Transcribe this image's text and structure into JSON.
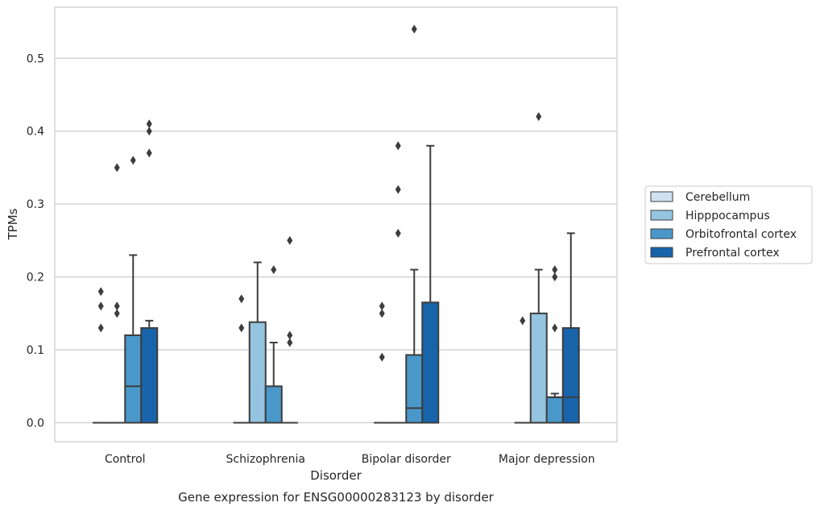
{
  "chart_data": {
    "type": "boxplot",
    "title": "",
    "caption": "Gene expression for ENSG00000283123 by disorder",
    "xlabel": "Disorder",
    "ylabel": "TPMs",
    "ylim": [
      -0.026,
      0.57
    ],
    "yticks": [
      0.0,
      0.1,
      0.2,
      0.3,
      0.4,
      0.5
    ],
    "ytick_labels": [
      "0.0",
      "0.1",
      "0.2",
      "0.3",
      "0.4",
      "0.5"
    ],
    "grid": "horizontal",
    "legend_position": "right",
    "categories": [
      "Control",
      "Schizophrenia",
      "Bipolar disorder",
      "Major depression"
    ],
    "series": [
      {
        "name": "Cerebellum",
        "color": "#d0e1f2",
        "boxes": [
          {
            "q1": 0,
            "median": 0,
            "q3": 0,
            "whisker_low": 0,
            "whisker_high": 0,
            "outliers": [
              0.13,
              0.16,
              0.18
            ]
          },
          {
            "q1": 0,
            "median": 0,
            "q3": 0,
            "whisker_low": 0,
            "whisker_high": 0,
            "outliers": [
              0.13,
              0.17
            ]
          },
          {
            "q1": 0,
            "median": 0,
            "q3": 0,
            "whisker_low": 0,
            "whisker_high": 0,
            "outliers": [
              0.09,
              0.15,
              0.16
            ]
          },
          {
            "q1": 0,
            "median": 0,
            "q3": 0,
            "whisker_low": 0,
            "whisker_high": 0,
            "outliers": [
              0.14
            ]
          }
        ]
      },
      {
        "name": "Hipppocampus",
        "color": "#94c4df",
        "boxes": [
          {
            "q1": 0,
            "median": 0,
            "q3": 0,
            "whisker_low": 0,
            "whisker_high": 0,
            "outliers": [
              0.15,
              0.16,
              0.35
            ]
          },
          {
            "q1": 0,
            "median": 0,
            "q3": 0.138,
            "whisker_low": 0,
            "whisker_high": 0.22,
            "outliers": []
          },
          {
            "q1": 0,
            "median": 0,
            "q3": 0,
            "whisker_low": 0,
            "whisker_high": 0,
            "outliers": [
              0.26,
              0.32,
              0.38
            ]
          },
          {
            "q1": 0,
            "median": 0,
            "q3": 0.15,
            "whisker_low": 0,
            "whisker_high": 0.21,
            "outliers": [
              0.42
            ]
          }
        ]
      },
      {
        "name": "Orbitofrontal cortex",
        "color": "#4a98c9",
        "boxes": [
          {
            "q1": 0,
            "median": 0.05,
            "q3": 0.12,
            "whisker_low": 0,
            "whisker_high": 0.23,
            "outliers": [
              0.36
            ]
          },
          {
            "q1": 0,
            "median": 0,
            "q3": 0.05,
            "whisker_low": 0,
            "whisker_high": 0.11,
            "outliers": [
              0.21
            ]
          },
          {
            "q1": 0,
            "median": 0.02,
            "q3": 0.093,
            "whisker_low": 0,
            "whisker_high": 0.21,
            "outliers": [
              0.54
            ]
          },
          {
            "q1": 0,
            "median": 0.035,
            "q3": 0.035,
            "whisker_low": 0,
            "whisker_high": 0.04,
            "outliers": [
              0.13,
              0.2,
              0.21
            ]
          }
        ]
      },
      {
        "name": "Prefrontal cortex",
        "color": "#1764ab",
        "boxes": [
          {
            "q1": 0,
            "median": 0,
            "q3": 0.13,
            "whisker_low": 0,
            "whisker_high": 0.14,
            "outliers": [
              0.37,
              0.4,
              0.41
            ]
          },
          {
            "q1": 0,
            "median": 0,
            "q3": 0,
            "whisker_low": 0,
            "whisker_high": 0,
            "outliers": [
              0.11,
              0.12,
              0.25
            ]
          },
          {
            "q1": 0,
            "median": 0,
            "q3": 0.165,
            "whisker_low": 0,
            "whisker_high": 0.38,
            "outliers": []
          },
          {
            "q1": 0,
            "median": 0.035,
            "q3": 0.13,
            "whisker_low": 0,
            "whisker_high": 0.26,
            "outliers": []
          }
        ]
      }
    ]
  }
}
